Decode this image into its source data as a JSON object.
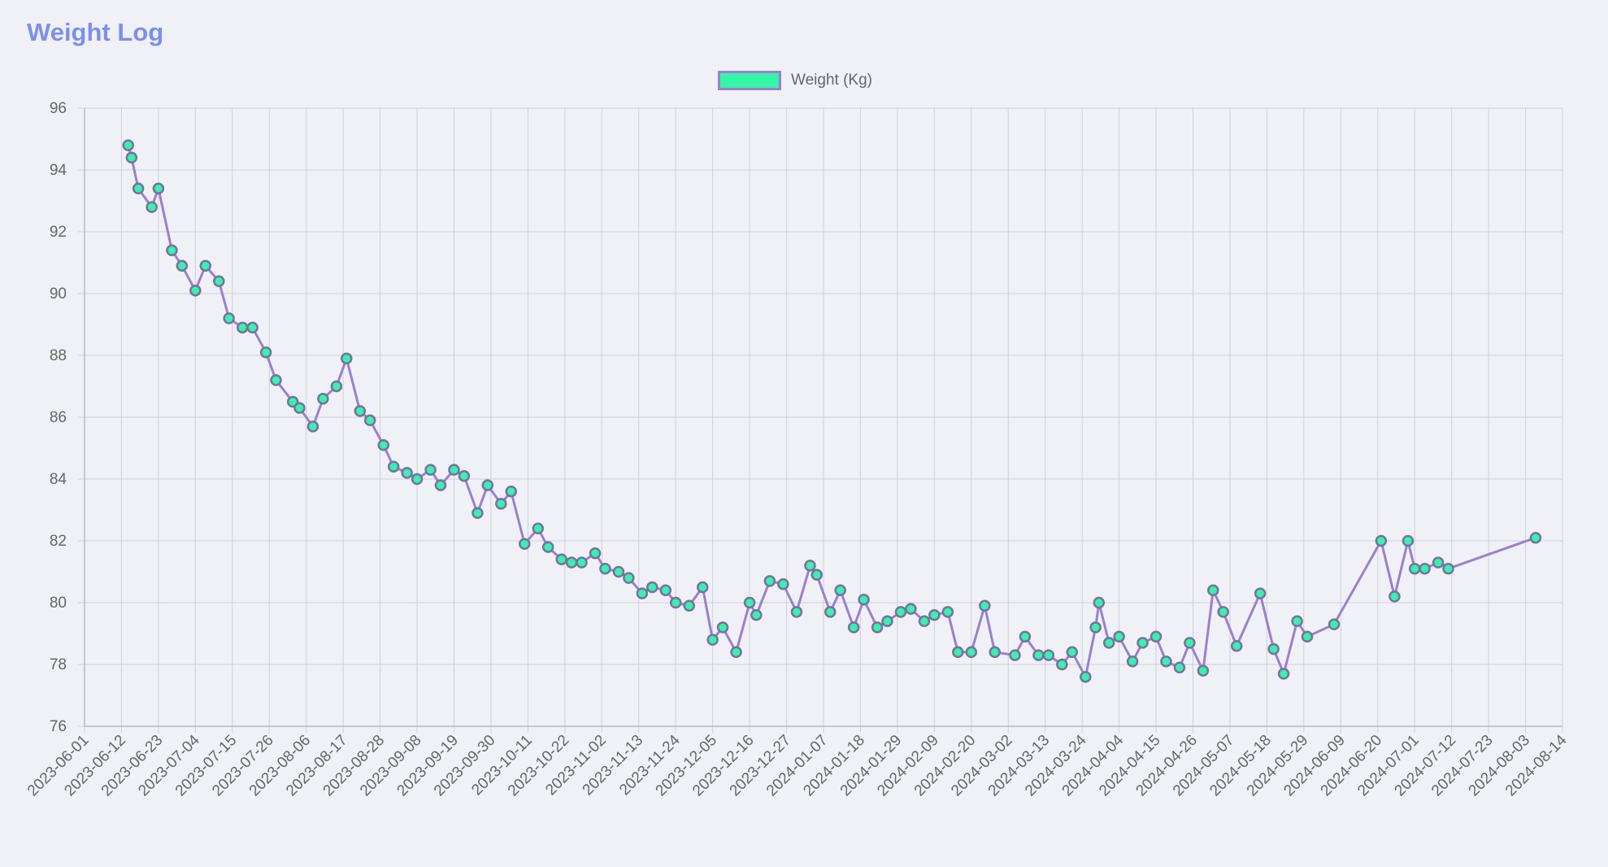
{
  "page": {
    "title": "Weight Log"
  },
  "colors": {
    "line": "#9b7fd0",
    "point_fill": "#34f5a8",
    "point_stroke": "#7b6ea6",
    "grid": "#cfd0d6",
    "axis_text": "#666666",
    "title": "#7b8ff0",
    "background": "#f0f1f6"
  },
  "chart_data": {
    "type": "line",
    "title": "",
    "xlabel": "",
    "ylabel": "",
    "ylim": [
      76,
      96
    ],
    "xlim": [
      "2023-06-01",
      "2024-08-14"
    ],
    "grid": true,
    "legend_position": "top-center",
    "y_ticks": [
      76,
      78,
      80,
      82,
      84,
      86,
      88,
      90,
      92,
      94,
      96
    ],
    "x_ticks": [
      "2023-06-01",
      "2023-06-12",
      "2023-06-23",
      "2023-07-04",
      "2023-07-15",
      "2023-07-26",
      "2023-08-06",
      "2023-08-17",
      "2023-08-28",
      "2023-09-08",
      "2023-09-19",
      "2023-09-30",
      "2023-10-11",
      "2023-10-22",
      "2023-11-02",
      "2023-11-13",
      "2023-11-24",
      "2023-12-05",
      "2023-12-16",
      "2023-12-27",
      "2024-01-07",
      "2024-01-18",
      "2024-01-29",
      "2024-02-09",
      "2024-02-20",
      "2024-03-02",
      "2024-03-13",
      "2024-03-24",
      "2024-04-04",
      "2024-04-15",
      "2024-04-26",
      "2024-05-07",
      "2024-05-18",
      "2024-05-29",
      "2024-06-09",
      "2024-06-20",
      "2024-07-01",
      "2024-07-12",
      "2024-07-23",
      "2024-08-03",
      "2024-08-14"
    ],
    "series": [
      {
        "name": "Weight (Kg)",
        "points": [
          {
            "x": "2023-06-14",
            "y": 94.8
          },
          {
            "x": "2023-06-15",
            "y": 94.4
          },
          {
            "x": "2023-06-17",
            "y": 93.4
          },
          {
            "x": "2023-06-21",
            "y": 92.8
          },
          {
            "x": "2023-06-23",
            "y": 93.4
          },
          {
            "x": "2023-06-27",
            "y": 91.4
          },
          {
            "x": "2023-06-30",
            "y": 90.9
          },
          {
            "x": "2023-07-04",
            "y": 90.1
          },
          {
            "x": "2023-07-07",
            "y": 90.9
          },
          {
            "x": "2023-07-11",
            "y": 90.4
          },
          {
            "x": "2023-07-14",
            "y": 89.2
          },
          {
            "x": "2023-07-18",
            "y": 88.9
          },
          {
            "x": "2023-07-21",
            "y": 88.9
          },
          {
            "x": "2023-07-25",
            "y": 88.1
          },
          {
            "x": "2023-07-28",
            "y": 87.2
          },
          {
            "x": "2023-08-02",
            "y": 86.5
          },
          {
            "x": "2023-08-04",
            "y": 86.3
          },
          {
            "x": "2023-08-08",
            "y": 85.7
          },
          {
            "x": "2023-08-11",
            "y": 86.6
          },
          {
            "x": "2023-08-15",
            "y": 87.0
          },
          {
            "x": "2023-08-18",
            "y": 87.9
          },
          {
            "x": "2023-08-22",
            "y": 86.2
          },
          {
            "x": "2023-08-25",
            "y": 85.9
          },
          {
            "x": "2023-08-29",
            "y": 85.1
          },
          {
            "x": "2023-09-01",
            "y": 84.4
          },
          {
            "x": "2023-09-05",
            "y": 84.2
          },
          {
            "x": "2023-09-08",
            "y": 84.0
          },
          {
            "x": "2023-09-12",
            "y": 84.3
          },
          {
            "x": "2023-09-15",
            "y": 83.8
          },
          {
            "x": "2023-09-19",
            "y": 84.3
          },
          {
            "x": "2023-09-22",
            "y": 84.1
          },
          {
            "x": "2023-09-26",
            "y": 82.9
          },
          {
            "x": "2023-09-29",
            "y": 83.8
          },
          {
            "x": "2023-10-03",
            "y": 83.2
          },
          {
            "x": "2023-10-06",
            "y": 83.6
          },
          {
            "x": "2023-10-10",
            "y": 81.9
          },
          {
            "x": "2023-10-14",
            "y": 82.4
          },
          {
            "x": "2023-10-17",
            "y": 81.8
          },
          {
            "x": "2023-10-21",
            "y": 81.4
          },
          {
            "x": "2023-10-24",
            "y": 81.3
          },
          {
            "x": "2023-10-27",
            "y": 81.3
          },
          {
            "x": "2023-10-31",
            "y": 81.6
          },
          {
            "x": "2023-11-03",
            "y": 81.1
          },
          {
            "x": "2023-11-07",
            "y": 81.0
          },
          {
            "x": "2023-11-10",
            "y": 80.8
          },
          {
            "x": "2023-11-14",
            "y": 80.3
          },
          {
            "x": "2023-11-17",
            "y": 80.5
          },
          {
            "x": "2023-11-21",
            "y": 80.4
          },
          {
            "x": "2023-11-24",
            "y": 80.0
          },
          {
            "x": "2023-11-28",
            "y": 79.9
          },
          {
            "x": "2023-12-02",
            "y": 80.5
          },
          {
            "x": "2023-12-05",
            "y": 78.8
          },
          {
            "x": "2023-12-08",
            "y": 79.2
          },
          {
            "x": "2023-12-12",
            "y": 78.4
          },
          {
            "x": "2023-12-16",
            "y": 80.0
          },
          {
            "x": "2023-12-18",
            "y": 79.6
          },
          {
            "x": "2023-12-22",
            "y": 80.7
          },
          {
            "x": "2023-12-26",
            "y": 80.6
          },
          {
            "x": "2023-12-30",
            "y": 79.7
          },
          {
            "x": "2024-01-03",
            "y": 81.2
          },
          {
            "x": "2024-01-05",
            "y": 80.9
          },
          {
            "x": "2024-01-09",
            "y": 79.7
          },
          {
            "x": "2024-01-12",
            "y": 80.4
          },
          {
            "x": "2024-01-16",
            "y": 79.2
          },
          {
            "x": "2024-01-19",
            "y": 80.1
          },
          {
            "x": "2024-01-23",
            "y": 79.2
          },
          {
            "x": "2024-01-26",
            "y": 79.4
          },
          {
            "x": "2024-01-30",
            "y": 79.7
          },
          {
            "x": "2024-02-02",
            "y": 79.8
          },
          {
            "x": "2024-02-06",
            "y": 79.4
          },
          {
            "x": "2024-02-09",
            "y": 79.6
          },
          {
            "x": "2024-02-13",
            "y": 79.7
          },
          {
            "x": "2024-02-16",
            "y": 78.4
          },
          {
            "x": "2024-02-20",
            "y": 78.4
          },
          {
            "x": "2024-02-24",
            "y": 79.9
          },
          {
            "x": "2024-02-27",
            "y": 78.4
          },
          {
            "x": "2024-03-04",
            "y": 78.3
          },
          {
            "x": "2024-03-07",
            "y": 78.9
          },
          {
            "x": "2024-03-11",
            "y": 78.3
          },
          {
            "x": "2024-03-14",
            "y": 78.3
          },
          {
            "x": "2024-03-18",
            "y": 78.0
          },
          {
            "x": "2024-03-21",
            "y": 78.4
          },
          {
            "x": "2024-03-25",
            "y": 77.6
          },
          {
            "x": "2024-03-28",
            "y": 79.2
          },
          {
            "x": "2024-03-29",
            "y": 80.0
          },
          {
            "x": "2024-04-01",
            "y": 78.7
          },
          {
            "x": "2024-04-04",
            "y": 78.9
          },
          {
            "x": "2024-04-08",
            "y": 78.1
          },
          {
            "x": "2024-04-11",
            "y": 78.7
          },
          {
            "x": "2024-04-15",
            "y": 78.9
          },
          {
            "x": "2024-04-18",
            "y": 78.1
          },
          {
            "x": "2024-04-22",
            "y": 77.9
          },
          {
            "x": "2024-04-25",
            "y": 78.7
          },
          {
            "x": "2024-04-29",
            "y": 77.8
          },
          {
            "x": "2024-05-02",
            "y": 80.4
          },
          {
            "x": "2024-05-05",
            "y": 79.7
          },
          {
            "x": "2024-05-09",
            "y": 78.6
          },
          {
            "x": "2024-05-16",
            "y": 80.3
          },
          {
            "x": "2024-05-20",
            "y": 78.5
          },
          {
            "x": "2024-05-23",
            "y": 77.7
          },
          {
            "x": "2024-05-27",
            "y": 79.4
          },
          {
            "x": "2024-05-30",
            "y": 78.9
          },
          {
            "x": "2024-06-07",
            "y": 79.3
          },
          {
            "x": "2024-06-21",
            "y": 82.0
          },
          {
            "x": "2024-06-25",
            "y": 80.2
          },
          {
            "x": "2024-06-29",
            "y": 82.0
          },
          {
            "x": "2024-07-01",
            "y": 81.1
          },
          {
            "x": "2024-07-04",
            "y": 81.1
          },
          {
            "x": "2024-07-08",
            "y": 81.3
          },
          {
            "x": "2024-07-11",
            "y": 81.1
          },
          {
            "x": "2024-08-06",
            "y": 82.1
          }
        ]
      }
    ]
  }
}
